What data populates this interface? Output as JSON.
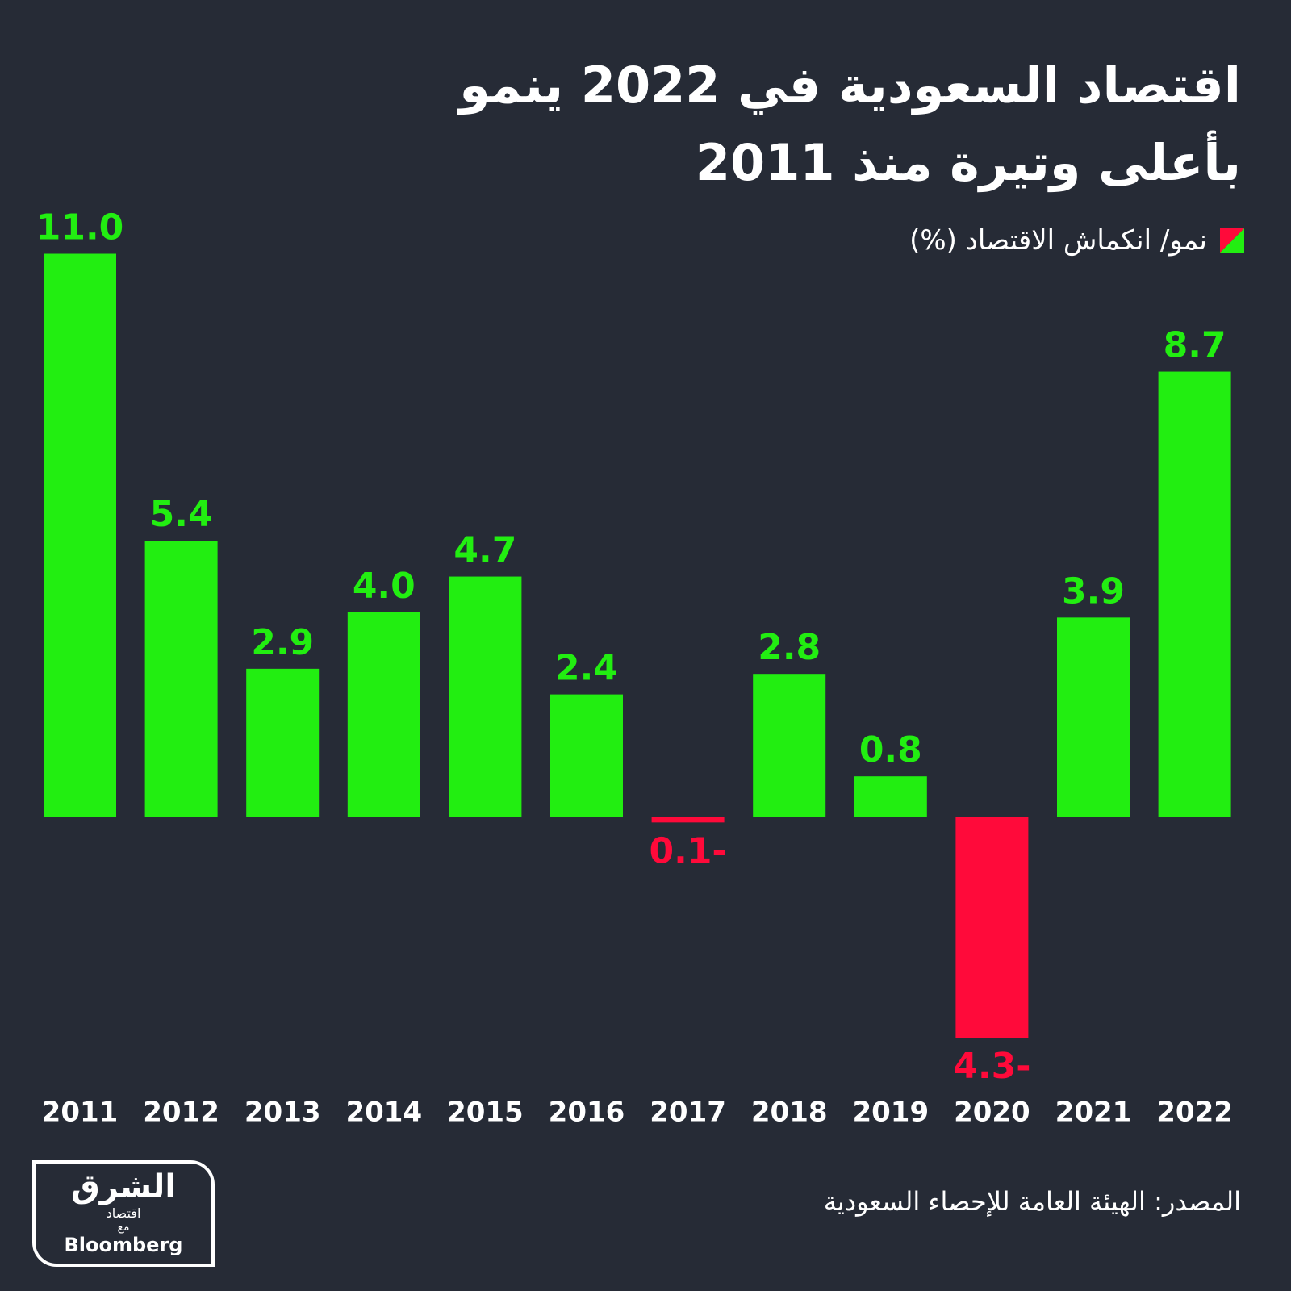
{
  "chart_data": {
    "type": "bar",
    "title_lines": [
      "اقتصاد السعودية في 2022 ينمو",
      "بأعلى وتيرة منذ 2011"
    ],
    "legend_label": "نمو/ انكماش الاقتصاد (%)",
    "categories": [
      "2011",
      "2012",
      "2013",
      "2014",
      "2015",
      "2016",
      "2017",
      "2018",
      "2019",
      "2020",
      "2021",
      "2022"
    ],
    "values": [
      11.0,
      5.4,
      2.9,
      4.0,
      4.7,
      2.4,
      -0.1,
      2.8,
      0.8,
      -4.3,
      3.9,
      8.7
    ],
    "value_labels": [
      "11.0",
      "5.4",
      "2.9",
      "4.0",
      "4.7",
      "2.4",
      "0.1-",
      "2.8",
      "0.8",
      "4.3-",
      "3.9",
      "8.7"
    ],
    "positive_color": "#22ee11",
    "negative_color": "#ff0a3a",
    "source": "المصدر: الهيئة العامة للإحصاء السعودية",
    "logo": {
      "brand": "الشرق",
      "sub": "اقتصاد",
      "with": "مع",
      "partner": "Bloomberg"
    }
  }
}
